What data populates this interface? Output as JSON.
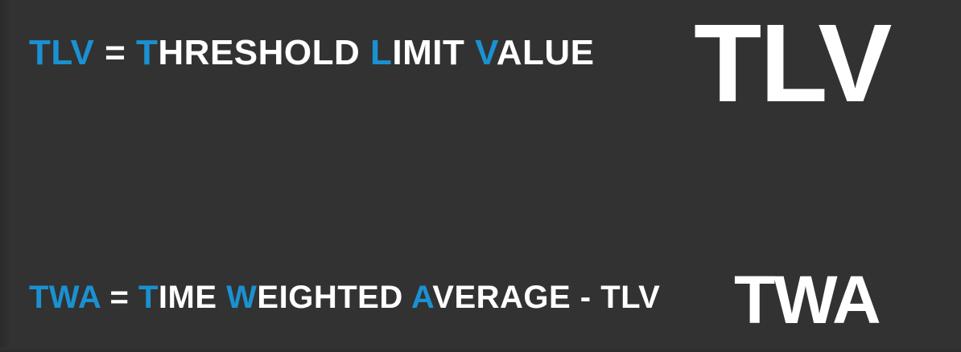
{
  "colors": {
    "background": "#323232",
    "accent": "#1a91d1",
    "text": "#ffffff"
  },
  "line_1": {
    "segments": [
      {
        "text": "TLV",
        "accent": true
      },
      {
        "text": " = ",
        "accent": false
      },
      {
        "text": "T",
        "accent": true
      },
      {
        "text": "HRESHOLD ",
        "accent": false
      },
      {
        "text": "L",
        "accent": true
      },
      {
        "text": "IMIT ",
        "accent": false
      },
      {
        "text": "V",
        "accent": true
      },
      {
        "text": "ALUE",
        "accent": false
      }
    ]
  },
  "big_tlv": "TLV",
  "line_2": {
    "segments": [
      {
        "text": "TWA",
        "accent": true
      },
      {
        "text": " = ",
        "accent": false
      },
      {
        "text": "T",
        "accent": true
      },
      {
        "text": "IME ",
        "accent": false
      },
      {
        "text": "W",
        "accent": true
      },
      {
        "text": "EIGHTED ",
        "accent": false
      },
      {
        "text": "A",
        "accent": true
      },
      {
        "text": "VERAGE - TLV",
        "accent": false
      }
    ]
  },
  "big_twa": "TWA"
}
